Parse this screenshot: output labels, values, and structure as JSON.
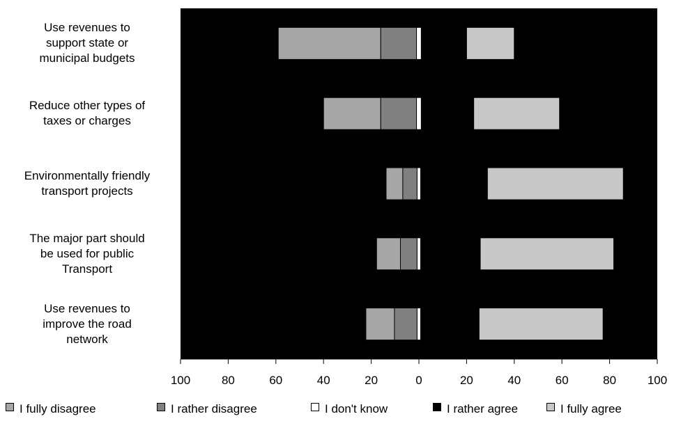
{
  "chart_data": {
    "type": "bar",
    "orientation": "horizontal",
    "stacking": "diverging",
    "title": "",
    "xlabel": "",
    "ylabel": "",
    "xlim": [
      -100,
      100
    ],
    "x_ticks": [
      -100,
      -80,
      -60,
      -40,
      -20,
      0,
      20,
      40,
      60,
      80,
      100
    ],
    "x_tick_labels": [
      "100",
      "80",
      "60",
      "40",
      "20",
      "0",
      "20",
      "40",
      "60",
      "80",
      "100"
    ],
    "categories": [
      "Use revenues to\nsupport state or\nmunicipal budgets",
      "Reduce other types of\ntaxes or charges",
      "Environmentally friendly\ntransport projects",
      "The major part should\nbe used for public\nTransport",
      "Use revenues to\nimprove the road\nnetwork"
    ],
    "series": [
      {
        "name": "I fully disagree",
        "color": "#a6a6a6",
        "values": [
          43,
          24,
          7,
          10,
          12
        ],
        "side": "negative"
      },
      {
        "name": "I rather disagree",
        "color": "#808080",
        "values": [
          15,
          15,
          6,
          7,
          9.5
        ],
        "side": "negative"
      },
      {
        "name": "I don't know",
        "color": "#ffffff",
        "values": [
          2,
          2,
          1.5,
          1.5,
          1.5
        ],
        "side": "middle"
      },
      {
        "name": "I rather agree",
        "color": "#000000",
        "values": [
          19,
          22,
          28,
          25,
          24.5
        ],
        "side": "positive"
      },
      {
        "name": "I fully agree",
        "color": "#c8c8c8",
        "values": [
          20,
          36,
          57,
          56,
          52
        ],
        "side": "positive"
      }
    ],
    "plot_background": "#000000",
    "grid": false,
    "legend_position": "bottom"
  }
}
